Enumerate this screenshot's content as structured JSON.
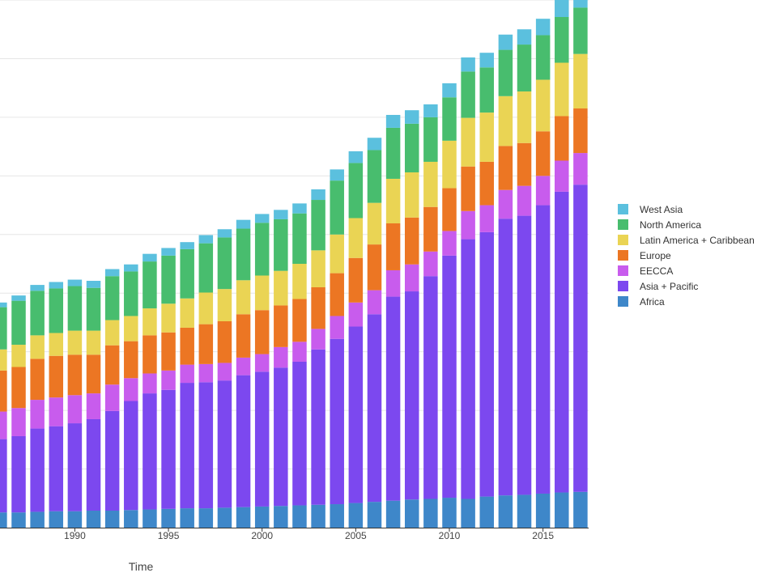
{
  "chart_data": {
    "type": "bar",
    "stacked": true,
    "xlabel": "Time",
    "ylabel": "",
    "ylim": [
      0,
      90
    ],
    "grid": true,
    "legend_position": "right",
    "x_ticks": [
      1990,
      1995,
      2000,
      2005,
      2010,
      2015
    ],
    "categories": [
      1986,
      1987,
      1988,
      1989,
      1990,
      1991,
      1992,
      1993,
      1994,
      1995,
      1996,
      1997,
      1998,
      1999,
      2000,
      2001,
      2002,
      2003,
      2004,
      2005,
      2006,
      2007,
      2008,
      2009,
      2010,
      2011,
      2012,
      2013,
      2014,
      2015,
      2016,
      2017
    ],
    "series": [
      {
        "name": "Africa",
        "color": "#3e87c9",
        "values": [
          2.6,
          2.6,
          2.7,
          2.8,
          2.8,
          2.9,
          2.9,
          3.0,
          3.1,
          3.2,
          3.3,
          3.3,
          3.4,
          3.5,
          3.6,
          3.7,
          3.8,
          3.9,
          4.0,
          4.2,
          4.4,
          4.6,
          4.8,
          4.9,
          5.1,
          4.9,
          5.3,
          5.5,
          5.6,
          5.8,
          6.0,
          6.1
        ]
      },
      {
        "name": "Asia + Pacific",
        "color": "#7c48ef",
        "values": [
          12.5,
          13.0,
          14.2,
          14.5,
          15.0,
          15.6,
          17.0,
          18.6,
          19.8,
          20.3,
          21.4,
          21.5,
          21.7,
          22.5,
          23.0,
          23.6,
          24.5,
          26.5,
          28.2,
          30.1,
          32.0,
          34.8,
          35.5,
          38.0,
          41.3,
          44.3,
          45.1,
          47.2,
          47.6,
          49.2,
          51.3,
          52.4
        ]
      },
      {
        "name": "EECCA",
        "color": "#c85ced",
        "values": [
          4.7,
          4.8,
          4.9,
          4.9,
          4.8,
          4.4,
          4.5,
          3.9,
          3.4,
          3.3,
          3.1,
          3.1,
          3.0,
          3.0,
          3.0,
          3.5,
          3.4,
          3.5,
          3.9,
          4.1,
          4.1,
          4.5,
          4.6,
          4.2,
          4.2,
          4.8,
          4.6,
          4.9,
          5.1,
          5.0,
          5.3,
          5.4
        ]
      },
      {
        "name": "Europe",
        "color": "#ec7623",
        "values": [
          7.0,
          7.0,
          7.0,
          7.1,
          6.9,
          6.6,
          6.7,
          6.3,
          6.5,
          6.5,
          6.3,
          6.8,
          7.1,
          7.4,
          7.5,
          7.1,
          7.3,
          7.1,
          7.3,
          7.6,
          7.8,
          8.0,
          8.0,
          7.6,
          7.3,
          7.6,
          7.4,
          7.5,
          7.3,
          7.6,
          7.6,
          7.6
        ]
      },
      {
        "name": "Latin America + Caribbean",
        "color": "#ead454",
        "values": [
          3.6,
          3.8,
          4.0,
          3.9,
          4.1,
          4.1,
          4.3,
          4.3,
          4.6,
          4.9,
          5.0,
          5.4,
          5.5,
          5.8,
          5.9,
          5.9,
          6.0,
          6.3,
          6.6,
          6.8,
          7.1,
          7.6,
          7.7,
          7.7,
          8.1,
          8.3,
          8.4,
          8.5,
          8.8,
          8.8,
          9.1,
          9.3
        ]
      },
      {
        "name": "North America",
        "color": "#48bd6e",
        "values": [
          7.2,
          7.5,
          7.6,
          7.6,
          7.6,
          7.3,
          7.5,
          7.6,
          8.0,
          8.2,
          8.4,
          8.4,
          8.8,
          8.8,
          9.0,
          8.8,
          8.6,
          8.6,
          9.2,
          9.4,
          9.0,
          8.7,
          8.3,
          7.6,
          7.4,
          7.9,
          7.7,
          7.9,
          8.0,
          7.6,
          7.8,
          7.9
        ]
      },
      {
        "name": "West Asia",
        "color": "#5bc0de",
        "values": [
          0.8,
          0.9,
          1.0,
          1.1,
          1.1,
          1.2,
          1.2,
          1.2,
          1.3,
          1.3,
          1.2,
          1.4,
          1.4,
          1.5,
          1.5,
          1.6,
          1.7,
          1.8,
          1.9,
          2.0,
          2.1,
          2.2,
          2.3,
          2.2,
          2.4,
          2.4,
          2.5,
          2.6,
          2.6,
          2.8,
          2.9,
          2.9
        ]
      }
    ]
  }
}
